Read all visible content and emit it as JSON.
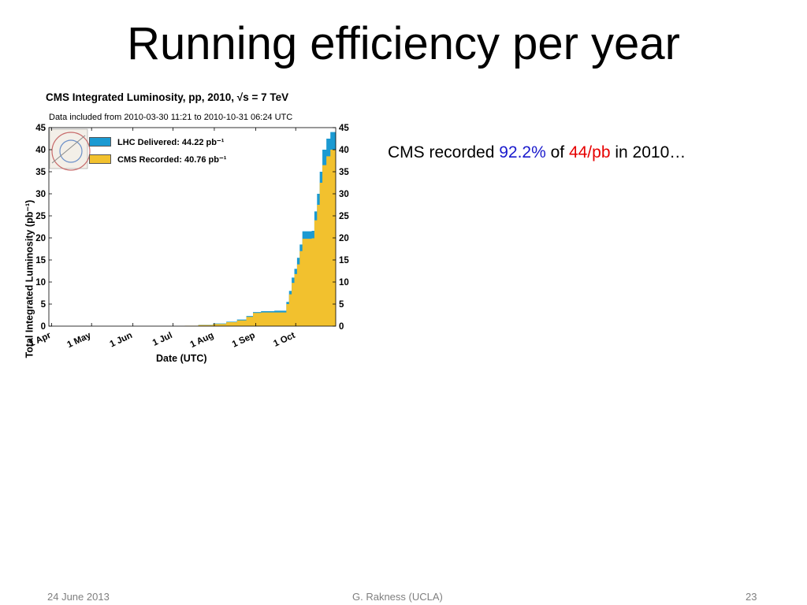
{
  "slide": {
    "title": "Running efficiency per year",
    "note_prefix": "CMS recorded ",
    "note_pct": "92.2%",
    "note_mid": " of ",
    "note_lumi": "44/pb",
    "note_suffix": " in 2010…",
    "footer_left": "24 June 2013",
    "footer_center": "G. Rakness (UCLA)",
    "footer_right": "23"
  },
  "colors": {
    "delivered": "#1b9ad2",
    "recorded": "#f2c12e"
  },
  "chart_data": {
    "type": "area",
    "title": "CMS Integrated Luminosity, pp, 2010, √s = 7 TeV",
    "subtitle": "Data included from 2010-03-30 11:21 to 2010-10-31 06:24 UTC",
    "xlabel": "Date (UTC)",
    "ylabel": "Total Integrated Luminosity (pb⁻¹)",
    "ylim": [
      0,
      45
    ],
    "yticks": [
      0,
      5,
      10,
      15,
      20,
      25,
      30,
      35,
      40,
      45
    ],
    "xlim": [
      "2010-03-30",
      "2010-10-31"
    ],
    "xticks": [
      {
        "date": "2010-04-01",
        "label": "1 Apr"
      },
      {
        "date": "2010-05-01",
        "label": "1 May"
      },
      {
        "date": "2010-06-01",
        "label": "1 Jun"
      },
      {
        "date": "2010-07-01",
        "label": "1 Jul"
      },
      {
        "date": "2010-08-01",
        "label": "1 Aug"
      },
      {
        "date": "2010-09-01",
        "label": "1 Sep"
      },
      {
        "date": "2010-10-01",
        "label": "1 Oct"
      }
    ],
    "grid": false,
    "legend_position": "top-left",
    "series": [
      {
        "name": "LHC Delivered: 44.22 pb⁻¹",
        "color": "#1b9ad2",
        "points": [
          [
            "2010-03-30",
            0
          ],
          [
            "2010-06-30",
            0.0
          ],
          [
            "2010-07-10",
            0.1
          ],
          [
            "2010-07-20",
            0.3
          ],
          [
            "2010-07-31",
            0.6
          ],
          [
            "2010-08-10",
            1.0
          ],
          [
            "2010-08-18",
            1.5
          ],
          [
            "2010-08-25",
            2.3
          ],
          [
            "2010-08-30",
            3.2
          ],
          [
            "2010-09-05",
            3.4
          ],
          [
            "2010-09-15",
            3.5
          ],
          [
            "2010-09-22",
            3.5
          ],
          [
            "2010-09-24",
            5.5
          ],
          [
            "2010-09-26",
            8.0
          ],
          [
            "2010-09-28",
            11.0
          ],
          [
            "2010-09-30",
            13.0
          ],
          [
            "2010-10-02",
            15.5
          ],
          [
            "2010-10-04",
            18.5
          ],
          [
            "2010-10-06",
            21.5
          ],
          [
            "2010-10-10",
            21.5
          ],
          [
            "2010-10-13",
            21.6
          ],
          [
            "2010-10-15",
            26.0
          ],
          [
            "2010-10-17",
            30.0
          ],
          [
            "2010-10-19",
            35.0
          ],
          [
            "2010-10-21",
            40.0
          ],
          [
            "2010-10-24",
            42.5
          ],
          [
            "2010-10-27",
            44.0
          ],
          [
            "2010-10-31",
            44.22
          ]
        ]
      },
      {
        "name": "CMS Recorded: 40.76 pb⁻¹",
        "color": "#f2c12e",
        "points": [
          [
            "2010-03-30",
            0
          ],
          [
            "2010-06-30",
            0.0
          ],
          [
            "2010-07-10",
            0.1
          ],
          [
            "2010-07-20",
            0.25
          ],
          [
            "2010-07-31",
            0.5
          ],
          [
            "2010-08-10",
            0.9
          ],
          [
            "2010-08-18",
            1.3
          ],
          [
            "2010-08-25",
            2.1
          ],
          [
            "2010-08-30",
            3.0
          ],
          [
            "2010-09-05",
            3.1
          ],
          [
            "2010-09-15",
            3.1
          ],
          [
            "2010-09-22",
            3.1
          ],
          [
            "2010-09-24",
            5.0
          ],
          [
            "2010-09-26",
            7.2
          ],
          [
            "2010-09-28",
            9.8
          ],
          [
            "2010-09-30",
            11.8
          ],
          [
            "2010-10-02",
            14.0
          ],
          [
            "2010-10-04",
            17.0
          ],
          [
            "2010-10-06",
            19.8
          ],
          [
            "2010-10-10",
            19.8
          ],
          [
            "2010-10-13",
            19.9
          ],
          [
            "2010-10-15",
            24.0
          ],
          [
            "2010-10-17",
            27.5
          ],
          [
            "2010-10-19",
            32.5
          ],
          [
            "2010-10-21",
            36.5
          ],
          [
            "2010-10-24",
            38.5
          ],
          [
            "2010-10-27",
            40.0
          ],
          [
            "2010-10-31",
            40.76
          ]
        ]
      }
    ]
  }
}
